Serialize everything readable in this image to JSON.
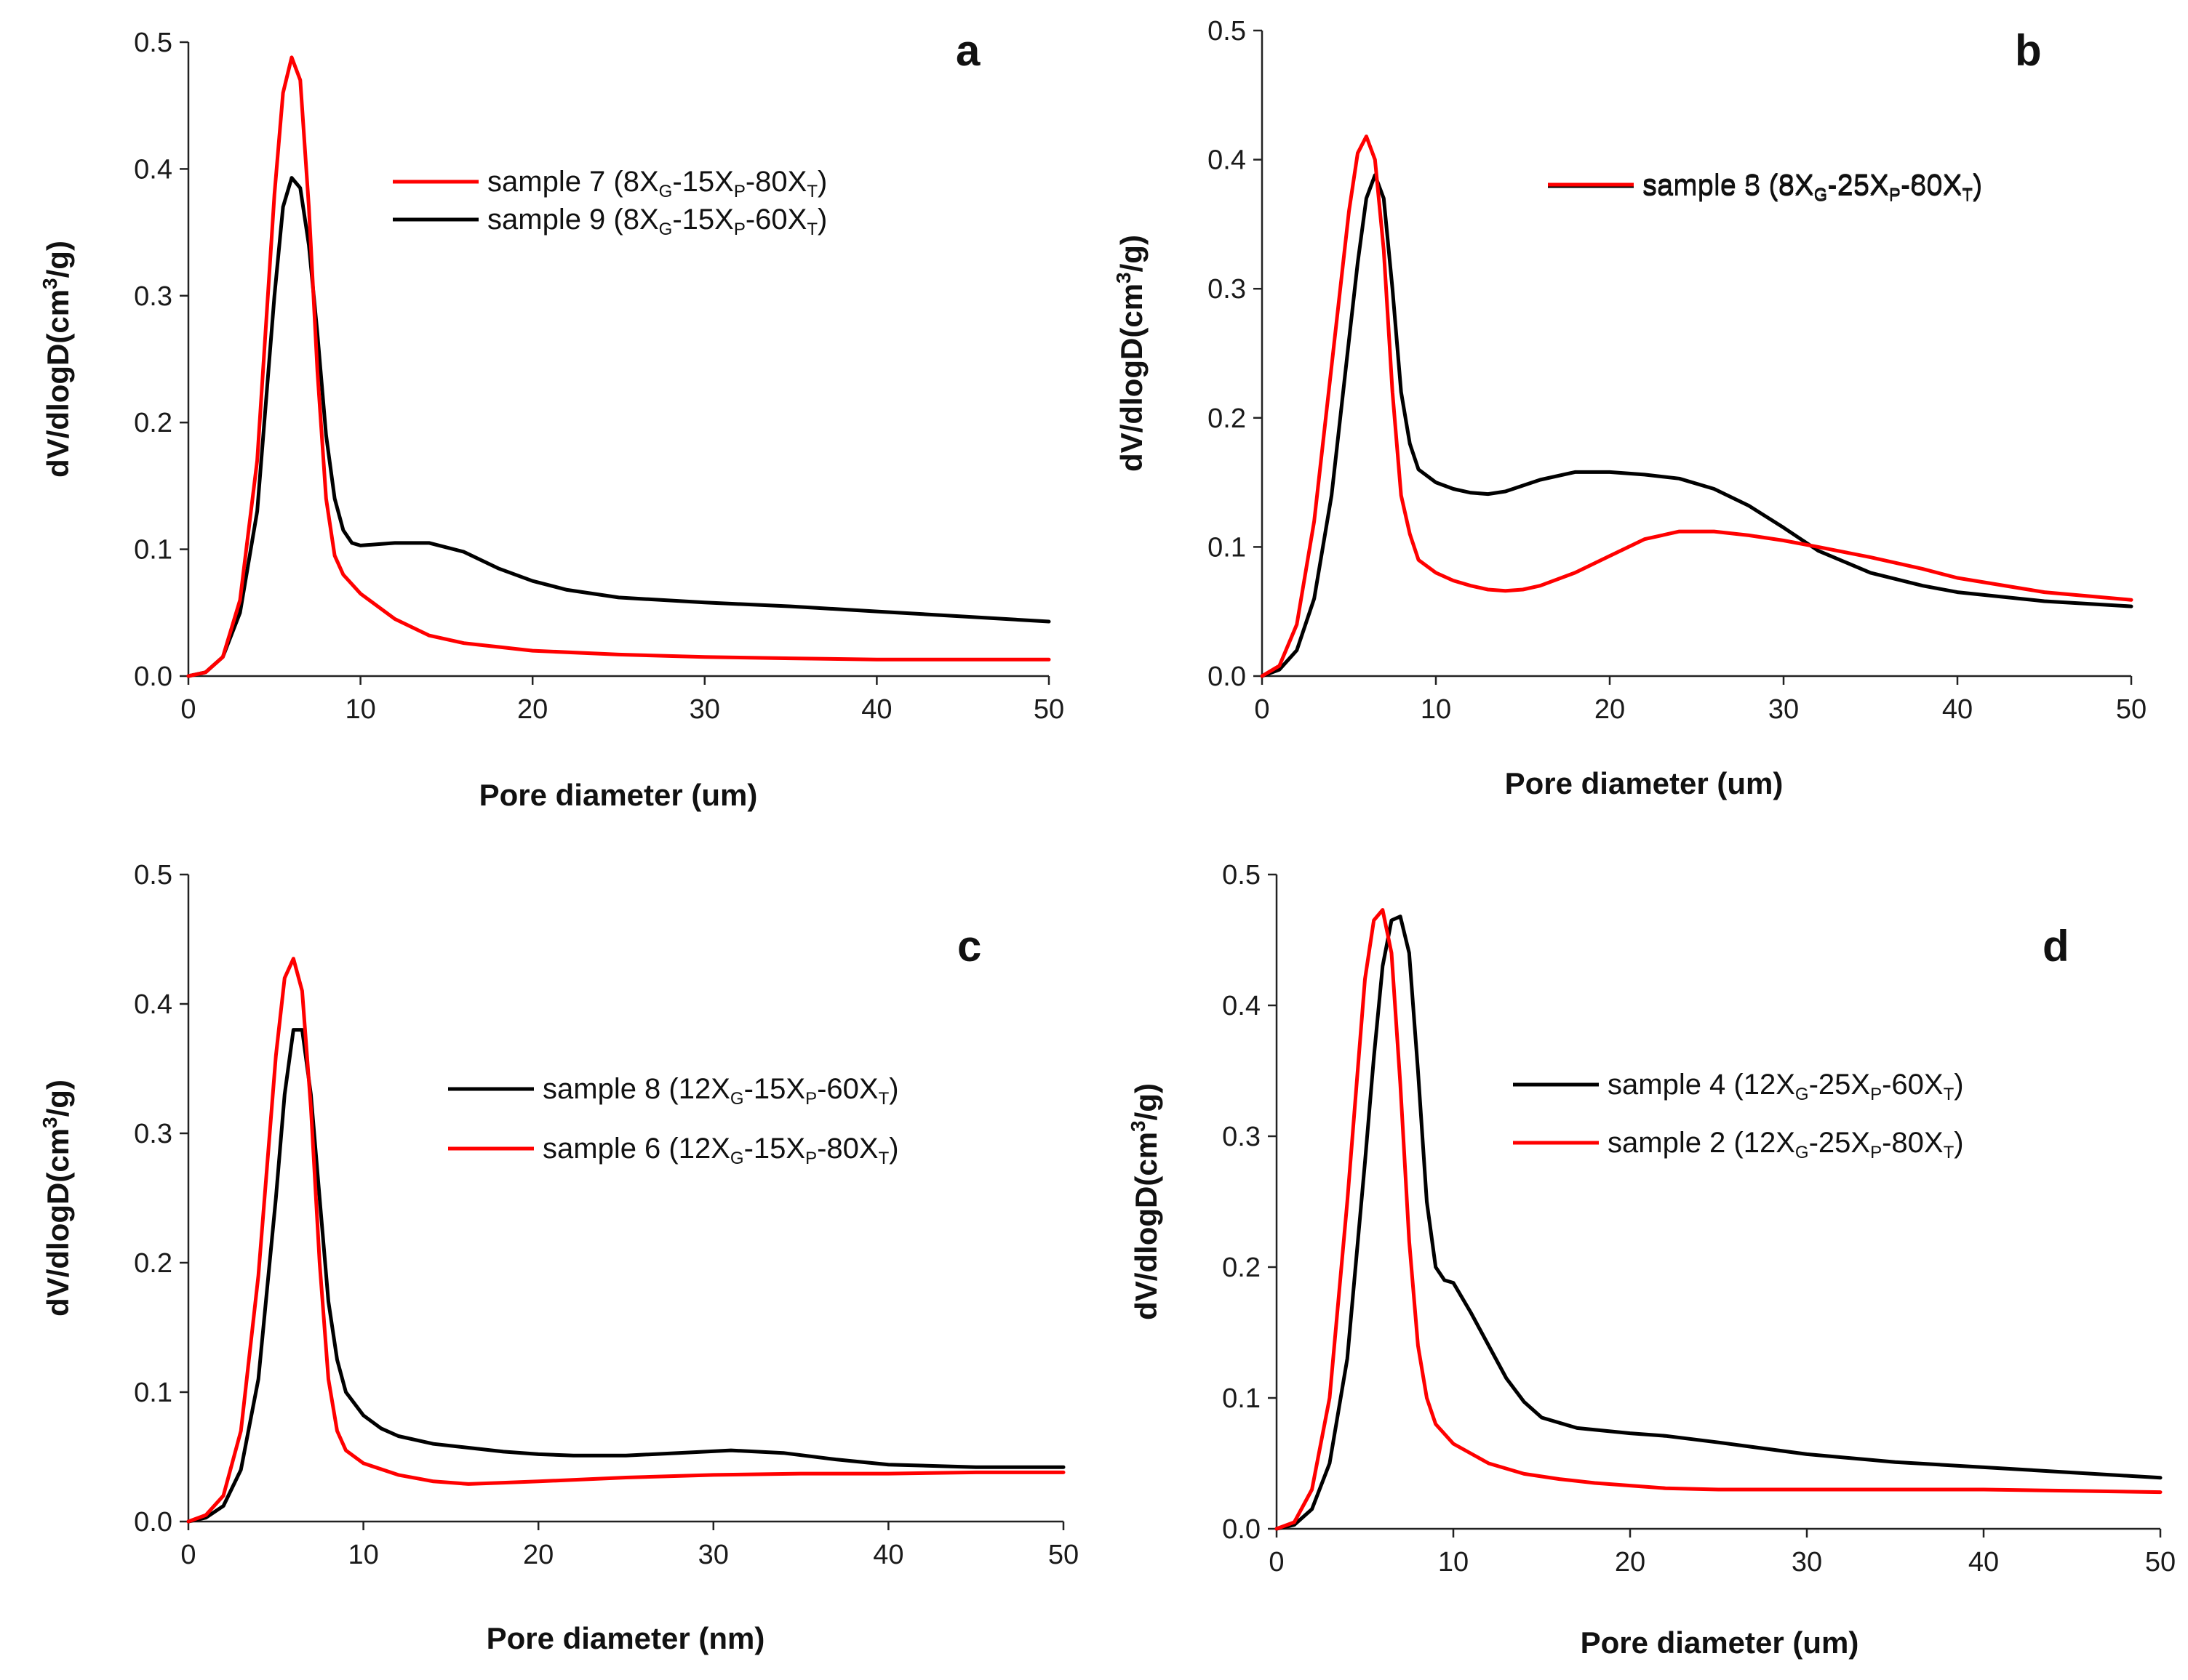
{
  "chart_data": [
    {
      "type": "line",
      "panel": "a",
      "xlabel": "Pore diameter (um)",
      "ylabel_main": "dV/dlogD(cm",
      "ylabel_sup": "3",
      "ylabel_tail": "/g)",
      "xlim": [
        0,
        50
      ],
      "ylim": [
        0,
        0.5
      ],
      "xticks": [
        0,
        10,
        20,
        30,
        40,
        50
      ],
      "xtick_labels": [
        "0",
        "10",
        "20",
        "30",
        "40",
        "50"
      ],
      "yticks": [
        0,
        0.1,
        0.2,
        0.3,
        0.4,
        0.5
      ],
      "ytick_labels": [
        "0.0",
        "0.1",
        "0.2",
        "0.3",
        "0.4",
        "0.5"
      ],
      "series": [
        {
          "name": "sample 9 (8XG-15XP-60XT)",
          "legend": {
            "prefix": "sample 9 (8X",
            "s1": "G",
            "m1": "-15X",
            "s2": "P",
            "m2": "-60X",
            "s3": "T",
            "suffix": ")"
          },
          "color": "#000000",
          "x": [
            0,
            1,
            2,
            3,
            4,
            5,
            5.5,
            6,
            6.5,
            7,
            7.5,
            8,
            8.5,
            9,
            9.5,
            10,
            11,
            12,
            14,
            16,
            18,
            20,
            22,
            25,
            30,
            35,
            40,
            45,
            50
          ],
          "y": [
            0,
            0.003,
            0.015,
            0.05,
            0.13,
            0.3,
            0.37,
            0.393,
            0.385,
            0.34,
            0.27,
            0.19,
            0.14,
            0.115,
            0.105,
            0.103,
            0.104,
            0.105,
            0.105,
            0.098,
            0.085,
            0.075,
            0.068,
            0.062,
            0.058,
            0.055,
            0.051,
            0.047,
            0.043
          ]
        },
        {
          "name": "sample 7 (8XG-15XP-80XT)",
          "legend": {
            "prefix": "sample 7 (8X",
            "s1": "G",
            "m1": "-15X",
            "s2": "P",
            "m2": "-80X",
            "s3": "T",
            "suffix": ")"
          },
          "color": "#ff0000",
          "x": [
            0,
            1,
            2,
            3,
            4,
            5,
            5.5,
            6,
            6.5,
            7,
            7.5,
            8,
            8.5,
            9,
            10,
            12,
            14,
            16,
            18,
            20,
            25,
            30,
            35,
            40,
            45,
            50
          ],
          "y": [
            0,
            0.003,
            0.015,
            0.06,
            0.17,
            0.38,
            0.46,
            0.488,
            0.47,
            0.37,
            0.24,
            0.14,
            0.095,
            0.08,
            0.065,
            0.045,
            0.032,
            0.026,
            0.023,
            0.02,
            0.017,
            0.015,
            0.014,
            0.013,
            0.013,
            0.013
          ]
        }
      ]
    },
    {
      "type": "line",
      "panel": "b",
      "xlabel": "Pore diameter (um)",
      "ylabel_main": "dV/dlogD(cm",
      "ylabel_sup": "3",
      "ylabel_tail": "/g)",
      "xlim": [
        0,
        50
      ],
      "ylim": [
        0,
        0.5
      ],
      "xticks": [
        0,
        10,
        20,
        30,
        40,
        50
      ],
      "xtick_labels": [
        "0",
        "10",
        "20",
        "30",
        "40",
        "50"
      ],
      "yticks": [
        0,
        0.1,
        0.2,
        0.3,
        0.4,
        0.5
      ],
      "ytick_labels": [
        "0.0",
        "0.1",
        "0.2",
        "0.3",
        "0.4",
        "0.5"
      ],
      "series": [
        {
          "name": "sample 5 (8XG-25XP-60XT)",
          "legend": {
            "prefix": "sample 5 (8X",
            "s1": "G",
            "m1": "-25X",
            "s2": "P",
            "m2": "-60X",
            "s3": "T",
            "suffix": ")"
          },
          "color": "#000000",
          "x": [
            0,
            1,
            2,
            3,
            4,
            5,
            5.5,
            6,
            6.5,
            7,
            7.5,
            8,
            8.5,
            9,
            10,
            11,
            12,
            13,
            14,
            16,
            18,
            20,
            22,
            24,
            26,
            28,
            30,
            32,
            35,
            38,
            40,
            45,
            50
          ],
          "y": [
            0,
            0.005,
            0.02,
            0.06,
            0.14,
            0.26,
            0.32,
            0.37,
            0.388,
            0.37,
            0.3,
            0.22,
            0.18,
            0.16,
            0.15,
            0.145,
            0.142,
            0.141,
            0.143,
            0.152,
            0.158,
            0.158,
            0.156,
            0.153,
            0.145,
            0.132,
            0.115,
            0.097,
            0.08,
            0.07,
            0.065,
            0.058,
            0.054
          ]
        },
        {
          "name": "sample 3 (8XG-25XP-80XT)",
          "legend": {
            "prefix": "sample 3 (8X",
            "s1": "G",
            "m1": "-25X",
            "s2": "P",
            "m2": "-80X",
            "s3": "T",
            "suffix": ")"
          },
          "color": "#ff0000",
          "x": [
            0,
            1,
            2,
            3,
            4,
            5,
            5.5,
            6,
            6.5,
            7,
            7.5,
            8,
            8.5,
            9,
            10,
            11,
            12,
            13,
            14,
            15,
            16,
            18,
            20,
            22,
            24,
            26,
            28,
            30,
            32,
            35,
            38,
            40,
            45,
            50
          ],
          "y": [
            0,
            0.008,
            0.04,
            0.12,
            0.24,
            0.36,
            0.405,
            0.418,
            0.4,
            0.33,
            0.22,
            0.14,
            0.11,
            0.09,
            0.08,
            0.074,
            0.07,
            0.067,
            0.066,
            0.067,
            0.07,
            0.08,
            0.093,
            0.106,
            0.112,
            0.112,
            0.109,
            0.105,
            0.1,
            0.092,
            0.083,
            0.076,
            0.065,
            0.059
          ]
        }
      ]
    },
    {
      "type": "line",
      "panel": "c",
      "xlabel": "Pore diameter (nm)",
      "ylabel_main": "dV/dlogD(cm",
      "ylabel_sup": "3",
      "ylabel_tail": "/g)",
      "xlim": [
        0,
        50
      ],
      "ylim": [
        0,
        0.5
      ],
      "xticks": [
        0,
        10,
        20,
        30,
        40,
        50
      ],
      "xtick_labels": [
        "0",
        "10",
        "20",
        "30",
        "40",
        "50"
      ],
      "yticks": [
        0,
        0.1,
        0.2,
        0.3,
        0.4,
        0.5
      ],
      "ytick_labels": [
        "0.0",
        "0.1",
        "0.2",
        "0.3",
        "0.4",
        "0.5"
      ],
      "series": [
        {
          "name": "sample 8 (12XG-15XP-60XT)",
          "legend": {
            "prefix": "sample 8 (12X",
            "s1": "G",
            "m1": "-15X",
            "s2": "P",
            "m2": "-60X",
            "s3": "T",
            "suffix": ")"
          },
          "color": "#000000",
          "x": [
            0,
            1,
            2,
            3,
            4,
            5,
            5.5,
            6,
            6.5,
            7,
            7.5,
            8,
            8.5,
            9,
            10,
            11,
            12,
            14,
            16,
            18,
            20,
            22,
            25,
            28,
            31,
            34,
            37,
            40,
            45,
            50
          ],
          "y": [
            0,
            0.003,
            0.012,
            0.04,
            0.11,
            0.25,
            0.33,
            0.38,
            0.38,
            0.33,
            0.25,
            0.17,
            0.125,
            0.1,
            0.082,
            0.072,
            0.066,
            0.06,
            0.057,
            0.054,
            0.052,
            0.051,
            0.051,
            0.053,
            0.055,
            0.053,
            0.048,
            0.044,
            0.042,
            0.042
          ]
        },
        {
          "name": "sample 6 (12XG-15XP-80XT)",
          "legend": {
            "prefix": "sample 6 (12X",
            "s1": "G",
            "m1": "-15X",
            "s2": "P",
            "m2": "-80X",
            "s3": "T",
            "suffix": ")"
          },
          "color": "#ff0000",
          "x": [
            0,
            1,
            2,
            3,
            4,
            5,
            5.5,
            6,
            6.5,
            7,
            7.5,
            8,
            8.5,
            9,
            10,
            12,
            14,
            16,
            18,
            20,
            25,
            30,
            35,
            40,
            45,
            50
          ],
          "y": [
            0,
            0.005,
            0.02,
            0.07,
            0.19,
            0.36,
            0.42,
            0.435,
            0.41,
            0.32,
            0.2,
            0.11,
            0.07,
            0.055,
            0.045,
            0.036,
            0.031,
            0.029,
            0.03,
            0.031,
            0.034,
            0.036,
            0.037,
            0.037,
            0.038,
            0.038
          ]
        }
      ]
    },
    {
      "type": "line",
      "panel": "d",
      "xlabel": "Pore diameter (um)",
      "ylabel_main": "dV/dlogD(cm",
      "ylabel_sup": "3",
      "ylabel_tail": "/g)",
      "xlim": [
        0,
        50
      ],
      "ylim": [
        0,
        0.5
      ],
      "xticks": [
        0,
        10,
        20,
        30,
        40,
        50
      ],
      "xtick_labels": [
        "0",
        "10",
        "20",
        "30",
        "40",
        "50"
      ],
      "yticks": [
        0,
        0.1,
        0.2,
        0.3,
        0.4,
        0.5
      ],
      "ytick_labels": [
        "0.0",
        "0.1",
        "0.2",
        "0.3",
        "0.4",
        "0.5"
      ],
      "series": [
        {
          "name": "sample 4 (12XG-25XP-60XT)",
          "legend": {
            "prefix": "sample 4 (12X",
            "s1": "G",
            "m1": "-25X",
            "s2": "P",
            "m2": "-60X",
            "s3": "T",
            "suffix": ")"
          },
          "color": "#000000",
          "x": [
            0,
            1,
            2,
            3,
            4,
            5,
            5.5,
            6,
            6.5,
            7,
            7.5,
            8,
            8.5,
            9,
            9.5,
            10,
            11,
            12,
            13,
            14,
            15,
            17,
            20,
            22,
            25,
            30,
            35,
            40,
            45,
            50
          ],
          "y": [
            0,
            0.003,
            0.015,
            0.05,
            0.13,
            0.28,
            0.36,
            0.43,
            0.465,
            0.468,
            0.44,
            0.35,
            0.25,
            0.2,
            0.19,
            0.188,
            0.165,
            0.14,
            0.115,
            0.097,
            0.085,
            0.077,
            0.073,
            0.071,
            0.066,
            0.057,
            0.051,
            0.047,
            0.043,
            0.039
          ]
        },
        {
          "name": "sample 2 (12XG-25XP-80XT)",
          "legend": {
            "prefix": "sample 2 (12X",
            "s1": "G",
            "m1": "-25X",
            "s2": "P",
            "m2": "-80X",
            "s3": "T",
            "suffix": ")"
          },
          "color": "#ff0000",
          "x": [
            0,
            1,
            2,
            3,
            4,
            5,
            5.5,
            6,
            6.5,
            7,
            7.5,
            8,
            8.5,
            9,
            10,
            12,
            14,
            16,
            18,
            20,
            22,
            25,
            30,
            35,
            40,
            45,
            50
          ],
          "y": [
            0,
            0.005,
            0.03,
            0.1,
            0.25,
            0.42,
            0.465,
            0.473,
            0.44,
            0.34,
            0.22,
            0.14,
            0.1,
            0.08,
            0.065,
            0.05,
            0.042,
            0.038,
            0.035,
            0.033,
            0.031,
            0.03,
            0.03,
            0.03,
            0.03,
            0.029,
            0.028
          ]
        }
      ]
    }
  ]
}
